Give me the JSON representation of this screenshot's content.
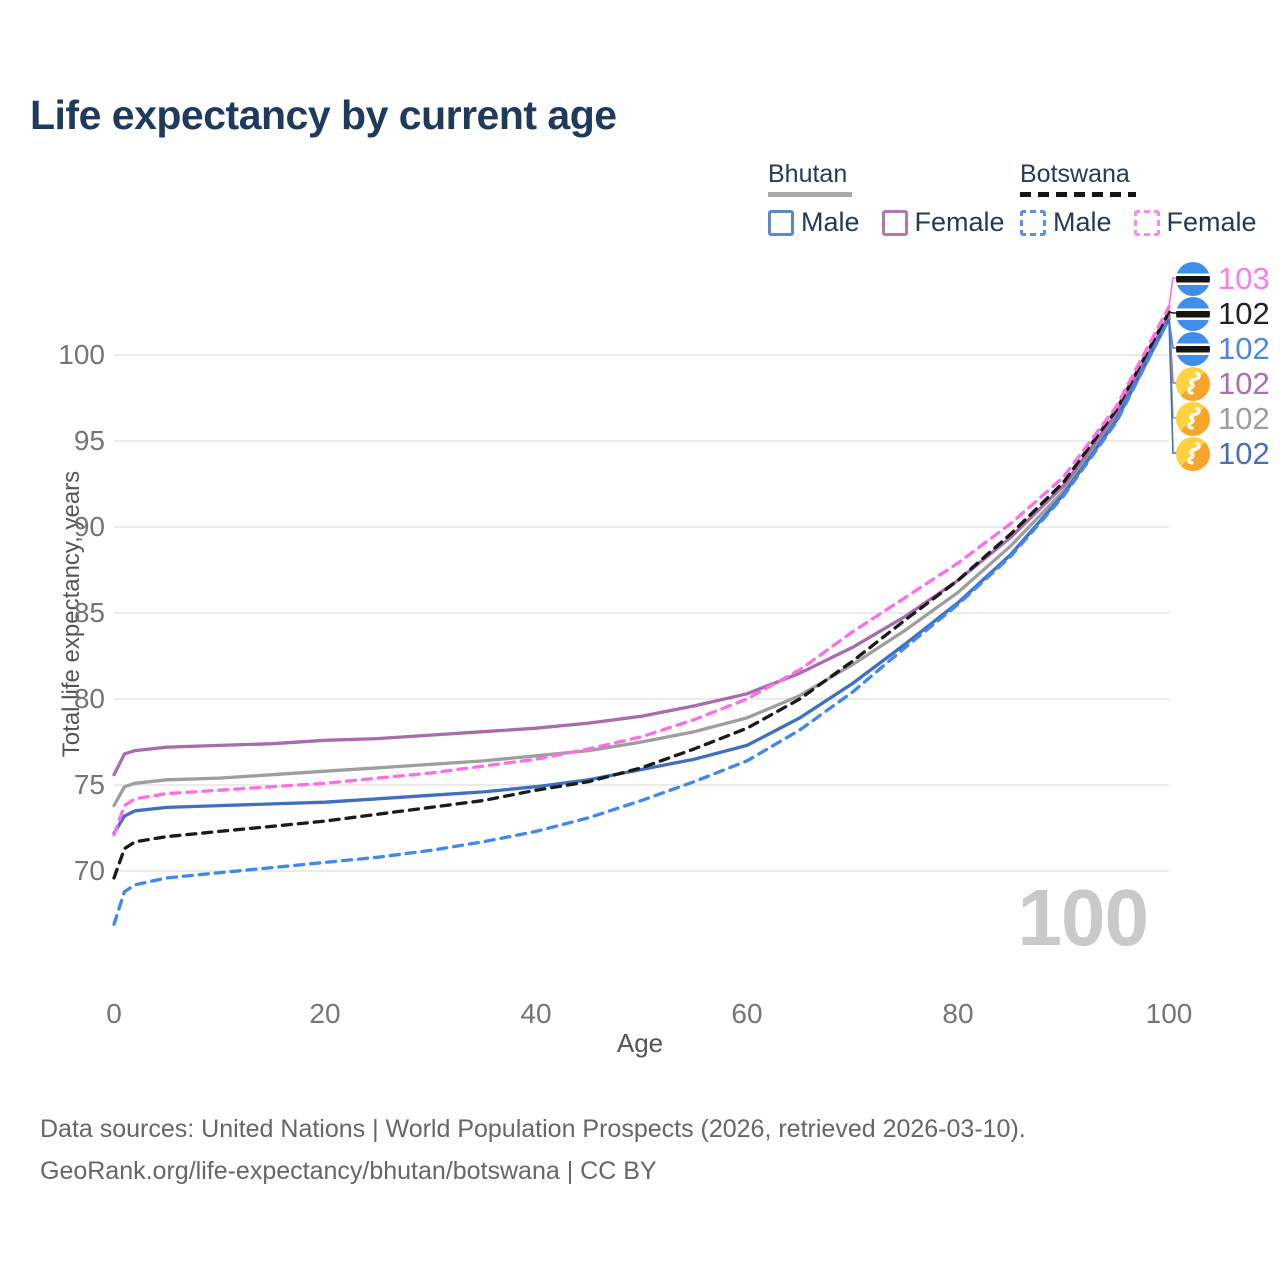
{
  "title": "Life expectancy by current age",
  "legend": {
    "bhutan_label": "Bhutan",
    "botswana_label": "Botswana",
    "male_label": "Male",
    "female_label": "Female"
  },
  "colors": {
    "title_text": "#1e3a5c",
    "bhutan_male": "#3f6fbe",
    "bhutan_female": "#a76cab",
    "bhutan_total": "#9e9e9e",
    "botswana_male": "#4187f0",
    "botswana_female": "#ff6ee4",
    "botswana_total": "#1a1a1a",
    "gridline": "#ebebeb",
    "tick_text": "#757575"
  },
  "chart_data": {
    "type": "line",
    "title": "Life expectancy by current age",
    "xlabel": "Age",
    "ylabel": "Total life expectancy, years",
    "xlim": [
      0,
      100
    ],
    "ylim": [
      66,
      104
    ],
    "xticks": [
      0,
      20,
      40,
      60,
      80,
      100
    ],
    "yticks": [
      70,
      75,
      80,
      85,
      90,
      95,
      100
    ],
    "grid": "horizontal-only",
    "legend_position": "top-right",
    "x": [
      0,
      1,
      2,
      5,
      10,
      15,
      20,
      25,
      30,
      35,
      40,
      45,
      50,
      55,
      60,
      65,
      70,
      75,
      80,
      85,
      90,
      95,
      100
    ],
    "series": [
      {
        "name": "Bhutan Total",
        "country": "Bhutan",
        "sex": "total",
        "style": "solid",
        "color": "#9e9e9e",
        "values": [
          73.8,
          74.9,
          75.1,
          75.3,
          75.4,
          75.6,
          75.8,
          76.0,
          76.2,
          76.4,
          76.7,
          77.0,
          77.5,
          78.1,
          78.9,
          80.2,
          82.0,
          84.0,
          86.2,
          88.9,
          92.1,
          96.4,
          102.2
        ]
      },
      {
        "name": "Bhutan Female",
        "country": "Bhutan",
        "sex": "female",
        "style": "solid",
        "color": "#a76cab",
        "values": [
          75.6,
          76.8,
          77.0,
          77.2,
          77.3,
          77.4,
          77.6,
          77.7,
          77.9,
          78.1,
          78.3,
          78.6,
          79.0,
          79.6,
          80.3,
          81.5,
          83.0,
          84.8,
          86.9,
          89.4,
          92.4,
          96.6,
          102.3
        ]
      },
      {
        "name": "Bhutan Male",
        "country": "Bhutan",
        "sex": "male",
        "style": "solid",
        "color": "#3f6fbe",
        "values": [
          72.2,
          73.2,
          73.5,
          73.7,
          73.8,
          73.9,
          74.0,
          74.2,
          74.4,
          74.6,
          74.9,
          75.3,
          75.9,
          76.5,
          77.3,
          78.9,
          80.9,
          83.2,
          85.6,
          88.4,
          91.9,
          96.2,
          102.1
        ]
      },
      {
        "name": "Botswana Total",
        "country": "Botswana",
        "sex": "total",
        "style": "dashed",
        "color": "#1a1a1a",
        "values": [
          69.6,
          71.3,
          71.7,
          72.0,
          72.3,
          72.6,
          72.9,
          73.3,
          73.7,
          74.1,
          74.7,
          75.2,
          76.0,
          77.1,
          78.3,
          80.0,
          82.2,
          84.6,
          86.9,
          89.6,
          92.6,
          96.8,
          102.5
        ]
      },
      {
        "name": "Botswana Female",
        "country": "Botswana",
        "sex": "female",
        "style": "dashed",
        "color": "#ff6ee4",
        "values": [
          72.1,
          73.8,
          74.2,
          74.5,
          74.7,
          74.9,
          75.1,
          75.4,
          75.7,
          76.1,
          76.5,
          77.1,
          77.8,
          78.8,
          80.0,
          81.7,
          83.9,
          85.9,
          87.9,
          90.2,
          92.9,
          97.0,
          102.8
        ]
      },
      {
        "name": "Botswana Male",
        "country": "Botswana",
        "sex": "male",
        "style": "dashed",
        "color": "#4187f0",
        "values": [
          66.9,
          68.8,
          69.2,
          69.6,
          69.9,
          70.2,
          70.5,
          70.8,
          71.2,
          71.7,
          72.3,
          73.1,
          74.1,
          75.2,
          76.4,
          78.2,
          80.4,
          83.0,
          85.5,
          88.3,
          91.8,
          96.1,
          102.1
        ]
      }
    ]
  },
  "end_labels": [
    {
      "value": "103",
      "flag": "botswana",
      "series": "Botswana Female",
      "text_color": "#ff7be9"
    },
    {
      "value": "102",
      "flag": "botswana",
      "series": "Botswana Total",
      "text_color": "#222222"
    },
    {
      "value": "102",
      "flag": "botswana",
      "series": "Botswana Male",
      "text_color": "#4c86e8"
    },
    {
      "value": "102",
      "flag": "bhutan",
      "series": "Bhutan Female",
      "text_color": "#ab6fae"
    },
    {
      "value": "102",
      "flag": "bhutan",
      "series": "Bhutan Total",
      "text_color": "#9e9e9e"
    },
    {
      "value": "102",
      "flag": "bhutan",
      "series": "Bhutan Male",
      "text_color": "#4a6fb8"
    }
  ],
  "age_watermark": "100",
  "footer": {
    "line1": "Data sources: United Nations | World Population Prospects (2026, retrieved 2026-03-10).",
    "line2": "GeoRank.org/life-expectancy/bhutan/botswana | CC BY"
  }
}
